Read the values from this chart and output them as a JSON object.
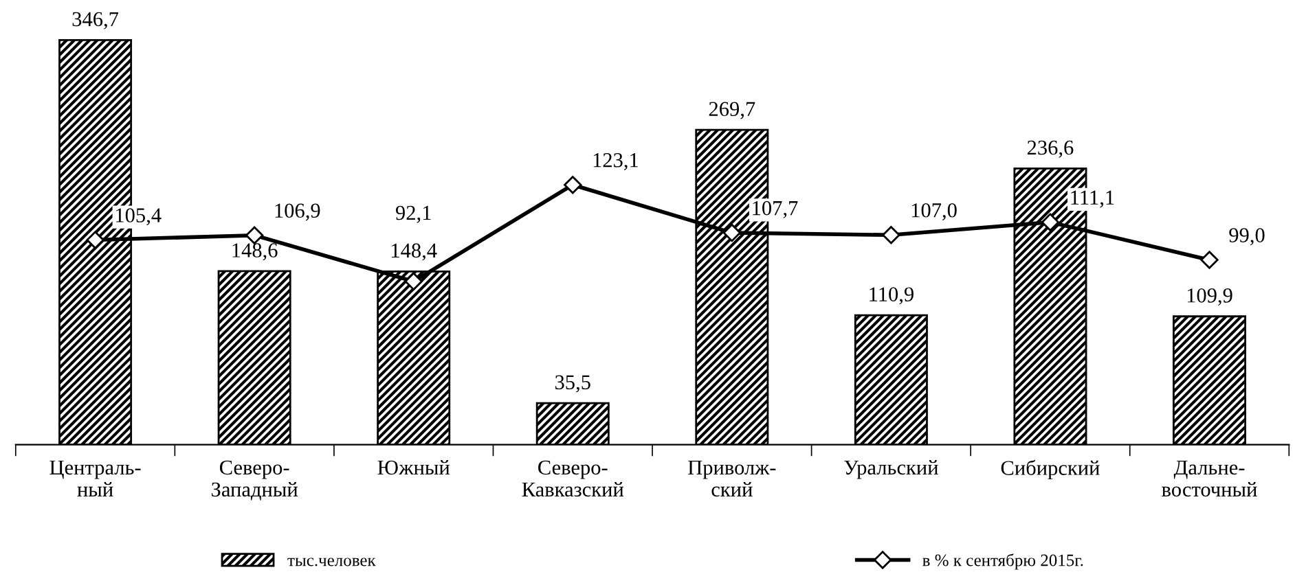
{
  "chart_data": {
    "type": "bar",
    "categories": [
      "Централь-\nный",
      "Северо-\nЗападный",
      "Южный",
      "Северо-\nКавказский",
      "Приволж-\nский",
      "Уральский",
      "Сибирский",
      "Дальне-\nвосточный"
    ],
    "series": [
      {
        "name": "тыс.человек",
        "color": "#000000",
        "values": [
          346.7,
          148.6,
          148.4,
          35.5,
          269.7,
          110.9,
          236.6,
          109.9
        ],
        "value_labels": [
          "346,7",
          "148,6",
          "148,4",
          "35,5",
          "269,7",
          "110,9",
          "236,6",
          "109,9"
        ]
      },
      {
        "name": "в % к сентябрю 2015г.",
        "type": "line",
        "axis": "y2",
        "color": "#000000",
        "values": [
          105.4,
          106.9,
          92.1,
          123.1,
          107.7,
          107.0,
          111.1,
          99.0
        ],
        "value_labels": [
          "105,4",
          "106,9",
          "92,1",
          "123,1",
          "107,7",
          "107,0",
          "111,1",
          "99,0"
        ]
      }
    ],
    "legend": "bottom",
    "marker": "diamond",
    "line_style": "solid",
    "grid": false
  }
}
